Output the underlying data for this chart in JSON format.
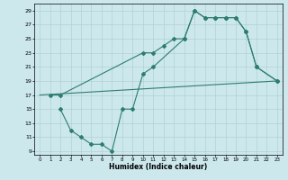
{
  "xlabel": "Humidex (Indice chaleur)",
  "xlim": [
    -0.5,
    23.5
  ],
  "ylim": [
    8.5,
    30
  ],
  "xticks": [
    0,
    1,
    2,
    3,
    4,
    5,
    6,
    7,
    8,
    9,
    10,
    11,
    12,
    13,
    14,
    15,
    16,
    17,
    18,
    19,
    20,
    21,
    22,
    23
  ],
  "yticks": [
    9,
    11,
    13,
    15,
    17,
    19,
    21,
    23,
    25,
    27,
    29
  ],
  "line_color": "#2e7d6e",
  "bg_color": "#cce8ec",
  "grid_color": "#aacccc",
  "line1_x": [
    1,
    2,
    10,
    11,
    12,
    13,
    14,
    15,
    16,
    17,
    18,
    19,
    20,
    21,
    23
  ],
  "line1_y": [
    17,
    17,
    23,
    23,
    24,
    25,
    25,
    29,
    28,
    28,
    28,
    28,
    26,
    21,
    19
  ],
  "line2_x": [
    2,
    3,
    4,
    5,
    6,
    7,
    8,
    9,
    10,
    11,
    14,
    15,
    16,
    17,
    18,
    19,
    20,
    21,
    23
  ],
  "line2_y": [
    15,
    12,
    11,
    10,
    10,
    9,
    15,
    15,
    20,
    21,
    25,
    29,
    28,
    28,
    28,
    28,
    26,
    21,
    19
  ],
  "line3_x": [
    0,
    23
  ],
  "line3_y": [
    17,
    19
  ]
}
